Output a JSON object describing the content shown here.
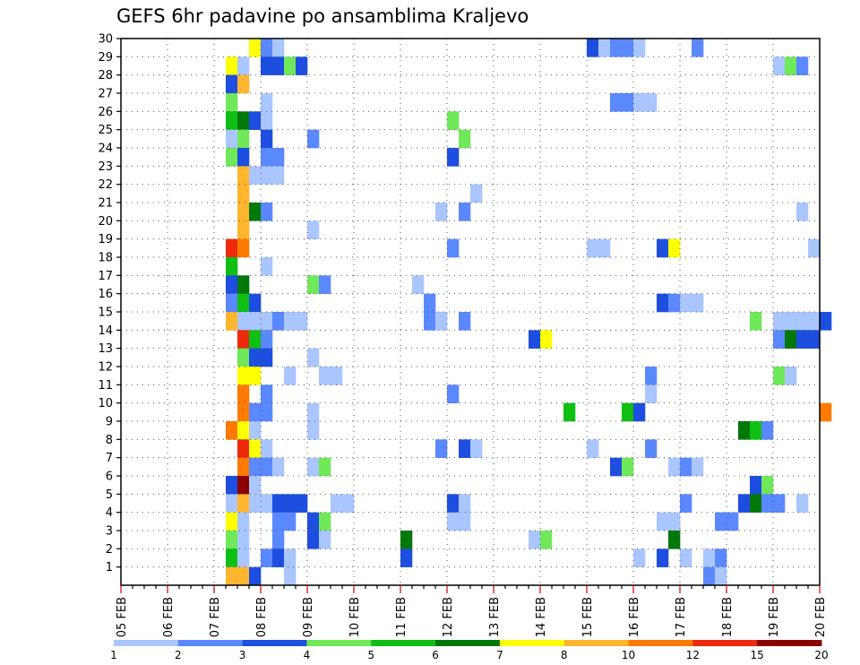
{
  "chart_data": {
    "type": "heatmap",
    "title": "GEFS 6hr padavine po ansamblima Kraljevo",
    "x_tick_labels": [
      "05 FEB",
      "06 FEB",
      "07 FEB",
      "08 FEB",
      "09 FEB",
      "10 FEB",
      "11 FEB",
      "12 FEB",
      "13 FEB",
      "14 FEB",
      "15 FEB",
      "16 FEB",
      "17 FEB",
      "18 FEB",
      "19 FEB",
      "20 FEB"
    ],
    "y_tick_labels": [
      "1",
      "2",
      "3",
      "4",
      "5",
      "6",
      "7",
      "8",
      "9",
      "10",
      "11",
      "12",
      "13",
      "14",
      "15",
      "16",
      "17",
      "18",
      "19",
      "20",
      "21",
      "22",
      "23",
      "24",
      "25",
      "26",
      "27",
      "28",
      "29",
      "30"
    ],
    "x_range_steps": [
      0,
      60
    ],
    "steps_per_day": 4,
    "y_range": [
      0,
      30
    ],
    "grid": "dotted",
    "colorbar": {
      "levels": [
        "1",
        "2",
        "3",
        "4",
        "5",
        "6",
        "7",
        "8",
        "10",
        "12",
        "15",
        "20"
      ],
      "colors": [
        "#a9c6ff",
        "#5a88ff",
        "#1d4ee0",
        "#6fe85a",
        "#0fbf14",
        "#00780a",
        "#ffff00",
        "#ffb52e",
        "#ff7a00",
        "#ee2a0c",
        "#8a0000"
      ]
    },
    "cells": [
      {
        "m": 30,
        "t": 11,
        "c": 6
      },
      {
        "m": 30,
        "t": 12,
        "c": 1
      },
      {
        "m": 30,
        "t": 13,
        "c": 0
      },
      {
        "m": 30,
        "t": 40,
        "c": 2
      },
      {
        "m": 30,
        "t": 41,
        "c": 0
      },
      {
        "m": 30,
        "t": 42,
        "c": 1
      },
      {
        "m": 30,
        "t": 43,
        "c": 1
      },
      {
        "m": 30,
        "t": 44,
        "c": 0
      },
      {
        "m": 30,
        "t": 49,
        "c": 1
      },
      {
        "m": 29,
        "t": 9,
        "c": 6
      },
      {
        "m": 29,
        "t": 10,
        "c": 0
      },
      {
        "m": 29,
        "t": 12,
        "c": 2
      },
      {
        "m": 29,
        "t": 13,
        "c": 2
      },
      {
        "m": 29,
        "t": 14,
        "c": 3
      },
      {
        "m": 29,
        "t": 15,
        "c": 2
      },
      {
        "m": 29,
        "t": 56,
        "c": 0
      },
      {
        "m": 29,
        "t": 57,
        "c": 3
      },
      {
        "m": 29,
        "t": 58,
        "c": 1
      },
      {
        "m": 28,
        "t": 9,
        "c": 2
      },
      {
        "m": 28,
        "t": 10,
        "c": 7
      },
      {
        "m": 27,
        "t": 9,
        "c": 3
      },
      {
        "m": 27,
        "t": 12,
        "c": 0
      },
      {
        "m": 27,
        "t": 42,
        "c": 1
      },
      {
        "m": 27,
        "t": 43,
        "c": 1
      },
      {
        "m": 27,
        "t": 44,
        "c": 0
      },
      {
        "m": 27,
        "t": 45,
        "c": 0
      },
      {
        "m": 26,
        "t": 9,
        "c": 4
      },
      {
        "m": 26,
        "t": 10,
        "c": 5
      },
      {
        "m": 26,
        "t": 11,
        "c": 2
      },
      {
        "m": 26,
        "t": 12,
        "c": 0
      },
      {
        "m": 26,
        "t": 28,
        "c": 3
      },
      {
        "m": 25,
        "t": 9,
        "c": 0
      },
      {
        "m": 25,
        "t": 10,
        "c": 3
      },
      {
        "m": 25,
        "t": 12,
        "c": 2
      },
      {
        "m": 25,
        "t": 16,
        "c": 1
      },
      {
        "m": 25,
        "t": 29,
        "c": 3
      },
      {
        "m": 24,
        "t": 9,
        "c": 3
      },
      {
        "m": 24,
        "t": 10,
        "c": 2
      },
      {
        "m": 24,
        "t": 12,
        "c": 1
      },
      {
        "m": 24,
        "t": 13,
        "c": 1
      },
      {
        "m": 24,
        "t": 28,
        "c": 2
      },
      {
        "m": 23,
        "t": 10,
        "c": 7
      },
      {
        "m": 23,
        "t": 11,
        "c": 0
      },
      {
        "m": 23,
        "t": 12,
        "c": 0
      },
      {
        "m": 23,
        "t": 13,
        "c": 0
      },
      {
        "m": 22,
        "t": 10,
        "c": 7
      },
      {
        "m": 22,
        "t": 30,
        "c": 0
      },
      {
        "m": 21,
        "t": 10,
        "c": 7
      },
      {
        "m": 21,
        "t": 11,
        "c": 5
      },
      {
        "m": 21,
        "t": 12,
        "c": 1
      },
      {
        "m": 21,
        "t": 27,
        "c": 0
      },
      {
        "m": 21,
        "t": 29,
        "c": 1
      },
      {
        "m": 21,
        "t": 58,
        "c": 0
      },
      {
        "m": 20,
        "t": 10,
        "c": 7
      },
      {
        "m": 20,
        "t": 16,
        "c": 0
      },
      {
        "m": 19,
        "t": 9,
        "c": 9
      },
      {
        "m": 19,
        "t": 10,
        "c": 8
      },
      {
        "m": 19,
        "t": 28,
        "c": 1
      },
      {
        "m": 19,
        "t": 40,
        "c": 0
      },
      {
        "m": 19,
        "t": 41,
        "c": 0
      },
      {
        "m": 19,
        "t": 46,
        "c": 2
      },
      {
        "m": 19,
        "t": 47,
        "c": 6
      },
      {
        "m": 19,
        "t": 59,
        "c": 0
      },
      {
        "m": 18,
        "t": 9,
        "c": 4
      },
      {
        "m": 18,
        "t": 12,
        "c": 0
      },
      {
        "m": 17,
        "t": 9,
        "c": 2
      },
      {
        "m": 17,
        "t": 10,
        "c": 5
      },
      {
        "m": 17,
        "t": 16,
        "c": 3
      },
      {
        "m": 17,
        "t": 17,
        "c": 1
      },
      {
        "m": 17,
        "t": 25,
        "c": 0
      },
      {
        "m": 16,
        "t": 9,
        "c": 1
      },
      {
        "m": 16,
        "t": 10,
        "c": 4
      },
      {
        "m": 16,
        "t": 11,
        "c": 2
      },
      {
        "m": 16,
        "t": 26,
        "c": 1
      },
      {
        "m": 16,
        "t": 46,
        "c": 2
      },
      {
        "m": 16,
        "t": 47,
        "c": 1
      },
      {
        "m": 16,
        "t": 48,
        "c": 0
      },
      {
        "m": 16,
        "t": 49,
        "c": 0
      },
      {
        "m": 15,
        "t": 9,
        "c": 7
      },
      {
        "m": 15,
        "t": 10,
        "c": 0
      },
      {
        "m": 15,
        "t": 11,
        "c": 0
      },
      {
        "m": 15,
        "t": 12,
        "c": 0
      },
      {
        "m": 15,
        "t": 13,
        "c": 1
      },
      {
        "m": 15,
        "t": 14,
        "c": 0
      },
      {
        "m": 15,
        "t": 15,
        "c": 0
      },
      {
        "m": 15,
        "t": 26,
        "c": 1
      },
      {
        "m": 15,
        "t": 27,
        "c": 0
      },
      {
        "m": 15,
        "t": 29,
        "c": 1
      },
      {
        "m": 15,
        "t": 54,
        "c": 3
      },
      {
        "m": 15,
        "t": 56,
        "c": 0
      },
      {
        "m": 15,
        "t": 57,
        "c": 0
      },
      {
        "m": 15,
        "t": 58,
        "c": 0
      },
      {
        "m": 15,
        "t": 59,
        "c": 0
      },
      {
        "m": 15,
        "t": 60,
        "c": 2
      },
      {
        "m": 14,
        "t": 10,
        "c": 9
      },
      {
        "m": 14,
        "t": 11,
        "c": 4
      },
      {
        "m": 14,
        "t": 12,
        "c": 1
      },
      {
        "m": 14,
        "t": 35,
        "c": 2
      },
      {
        "m": 14,
        "t": 36,
        "c": 6
      },
      {
        "m": 14,
        "t": 56,
        "c": 1
      },
      {
        "m": 14,
        "t": 57,
        "c": 5
      },
      {
        "m": 14,
        "t": 58,
        "c": 2
      },
      {
        "m": 14,
        "t": 59,
        "c": 2
      },
      {
        "m": 13,
        "t": 10,
        "c": 3
      },
      {
        "m": 13,
        "t": 11,
        "c": 2
      },
      {
        "m": 13,
        "t": 12,
        "c": 2
      },
      {
        "m": 13,
        "t": 16,
        "c": 0
      },
      {
        "m": 12,
        "t": 10,
        "c": 6
      },
      {
        "m": 12,
        "t": 11,
        "c": 6
      },
      {
        "m": 12,
        "t": 14,
        "c": 0
      },
      {
        "m": 12,
        "t": 17,
        "c": 0
      },
      {
        "m": 12,
        "t": 18,
        "c": 0
      },
      {
        "m": 12,
        "t": 45,
        "c": 1
      },
      {
        "m": 12,
        "t": 56,
        "c": 3
      },
      {
        "m": 12,
        "t": 57,
        "c": 0
      },
      {
        "m": 11,
        "t": 10,
        "c": 8
      },
      {
        "m": 11,
        "t": 12,
        "c": 1
      },
      {
        "m": 11,
        "t": 28,
        "c": 1
      },
      {
        "m": 11,
        "t": 45,
        "c": 0
      },
      {
        "m": 10,
        "t": 10,
        "c": 8
      },
      {
        "m": 10,
        "t": 11,
        "c": 1
      },
      {
        "m": 10,
        "t": 12,
        "c": 1
      },
      {
        "m": 10,
        "t": 16,
        "c": 0
      },
      {
        "m": 10,
        "t": 38,
        "c": 4
      },
      {
        "m": 10,
        "t": 43,
        "c": 4
      },
      {
        "m": 10,
        "t": 44,
        "c": 2
      },
      {
        "m": 10,
        "t": 60,
        "c": 8
      },
      {
        "m": 9,
        "t": 9,
        "c": 8
      },
      {
        "m": 9,
        "t": 10,
        "c": 6
      },
      {
        "m": 9,
        "t": 11,
        "c": 0
      },
      {
        "m": 9,
        "t": 16,
        "c": 0
      },
      {
        "m": 9,
        "t": 53,
        "c": 5
      },
      {
        "m": 9,
        "t": 54,
        "c": 4
      },
      {
        "m": 9,
        "t": 55,
        "c": 1
      },
      {
        "m": 8,
        "t": 10,
        "c": 9
      },
      {
        "m": 8,
        "t": 11,
        "c": 6
      },
      {
        "m": 8,
        "t": 12,
        "c": 0
      },
      {
        "m": 8,
        "t": 27,
        "c": 1
      },
      {
        "m": 8,
        "t": 29,
        "c": 2
      },
      {
        "m": 8,
        "t": 30,
        "c": 0
      },
      {
        "m": 8,
        "t": 40,
        "c": 0
      },
      {
        "m": 8,
        "t": 45,
        "c": 1
      },
      {
        "m": 7,
        "t": 10,
        "c": 8
      },
      {
        "m": 7,
        "t": 11,
        "c": 1
      },
      {
        "m": 7,
        "t": 12,
        "c": 1
      },
      {
        "m": 7,
        "t": 13,
        "c": 0
      },
      {
        "m": 7,
        "t": 16,
        "c": 0
      },
      {
        "m": 7,
        "t": 17,
        "c": 3
      },
      {
        "m": 7,
        "t": 42,
        "c": 2
      },
      {
        "m": 7,
        "t": 43,
        "c": 3
      },
      {
        "m": 7,
        "t": 47,
        "c": 0
      },
      {
        "m": 7,
        "t": 48,
        "c": 1
      },
      {
        "m": 7,
        "t": 49,
        "c": 0
      },
      {
        "m": 6,
        "t": 9,
        "c": 2
      },
      {
        "m": 6,
        "t": 10,
        "c": 10
      },
      {
        "m": 6,
        "t": 11,
        "c": 0
      },
      {
        "m": 6,
        "t": 54,
        "c": 2
      },
      {
        "m": 6,
        "t": 55,
        "c": 3
      },
      {
        "m": 5,
        "t": 9,
        "c": 0
      },
      {
        "m": 5,
        "t": 10,
        "c": 7
      },
      {
        "m": 5,
        "t": 11,
        "c": 0
      },
      {
        "m": 5,
        "t": 12,
        "c": 0
      },
      {
        "m": 5,
        "t": 13,
        "c": 2
      },
      {
        "m": 5,
        "t": 14,
        "c": 2
      },
      {
        "m": 5,
        "t": 15,
        "c": 2
      },
      {
        "m": 5,
        "t": 18,
        "c": 0
      },
      {
        "m": 5,
        "t": 19,
        "c": 0
      },
      {
        "m": 5,
        "t": 28,
        "c": 2
      },
      {
        "m": 5,
        "t": 29,
        "c": 0
      },
      {
        "m": 5,
        "t": 48,
        "c": 1
      },
      {
        "m": 5,
        "t": 53,
        "c": 2
      },
      {
        "m": 5,
        "t": 54,
        "c": 5
      },
      {
        "m": 5,
        "t": 55,
        "c": 1
      },
      {
        "m": 5,
        "t": 56,
        "c": 1
      },
      {
        "m": 5,
        "t": 58,
        "c": 0
      },
      {
        "m": 4,
        "t": 9,
        "c": 6
      },
      {
        "m": 4,
        "t": 10,
        "c": 0
      },
      {
        "m": 4,
        "t": 13,
        "c": 1
      },
      {
        "m": 4,
        "t": 14,
        "c": 1
      },
      {
        "m": 4,
        "t": 16,
        "c": 2
      },
      {
        "m": 4,
        "t": 17,
        "c": 3
      },
      {
        "m": 4,
        "t": 28,
        "c": 0
      },
      {
        "m": 4,
        "t": 29,
        "c": 0
      },
      {
        "m": 4,
        "t": 46,
        "c": 0
      },
      {
        "m": 4,
        "t": 47,
        "c": 0
      },
      {
        "m": 4,
        "t": 51,
        "c": 1
      },
      {
        "m": 4,
        "t": 52,
        "c": 1
      },
      {
        "m": 3,
        "t": 9,
        "c": 3
      },
      {
        "m": 3,
        "t": 10,
        "c": 0
      },
      {
        "m": 3,
        "t": 13,
        "c": 1
      },
      {
        "m": 3,
        "t": 16,
        "c": 2
      },
      {
        "m": 3,
        "t": 17,
        "c": 0
      },
      {
        "m": 3,
        "t": 24,
        "c": 5
      },
      {
        "m": 3,
        "t": 35,
        "c": 0
      },
      {
        "m": 3,
        "t": 36,
        "c": 3
      },
      {
        "m": 3,
        "t": 47,
        "c": 5
      },
      {
        "m": 2,
        "t": 9,
        "c": 4
      },
      {
        "m": 2,
        "t": 10,
        "c": 0
      },
      {
        "m": 2,
        "t": 12,
        "c": 1
      },
      {
        "m": 2,
        "t": 13,
        "c": 2
      },
      {
        "m": 2,
        "t": 14,
        "c": 0
      },
      {
        "m": 2,
        "t": 24,
        "c": 2
      },
      {
        "m": 2,
        "t": 44,
        "c": 0
      },
      {
        "m": 2,
        "t": 46,
        "c": 2
      },
      {
        "m": 2,
        "t": 48,
        "c": 0
      },
      {
        "m": 2,
        "t": 50,
        "c": 0
      },
      {
        "m": 2,
        "t": 51,
        "c": 1
      },
      {
        "m": 1,
        "t": 9,
        "c": 7
      },
      {
        "m": 1,
        "t": 10,
        "c": 7
      },
      {
        "m": 1,
        "t": 11,
        "c": 2
      },
      {
        "m": 1,
        "t": 14,
        "c": 0
      },
      {
        "m": 1,
        "t": 50,
        "c": 1
      },
      {
        "m": 1,
        "t": 51,
        "c": 0
      }
    ]
  }
}
